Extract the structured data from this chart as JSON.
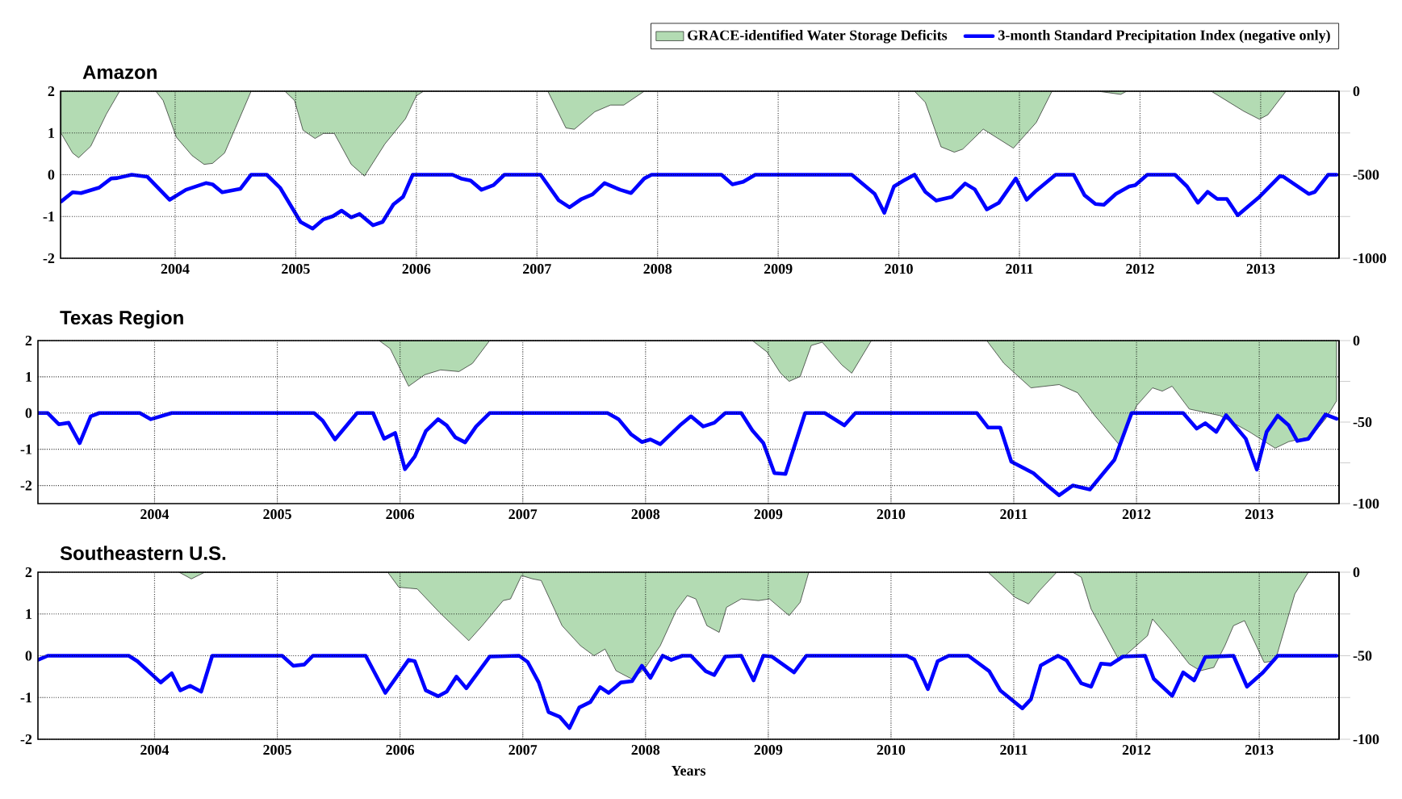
{
  "chart_data": [
    {
      "type": "line",
      "title": "Amazon",
      "legend": "top right",
      "grid": true,
      "xlim": [
        2003.05,
        2013.65
      ],
      "xticks": [
        2004,
        2005,
        2006,
        2007,
        2008,
        2009,
        2010,
        2011,
        2012,
        2013
      ],
      "ylim": [
        -2,
        2
      ],
      "yticks": [
        -2,
        -1,
        0,
        1,
        2
      ],
      "y2lim": [
        -1000,
        0
      ],
      "y2ticks": [
        -1000,
        {
          "value": -750,
          "label": null
        },
        -500,
        {
          "value": -250,
          "label": null
        },
        0
      ],
      "series": [
        {
          "name": "GRACE-identified Water Storage Deficits",
          "type": "area",
          "axis": "y2",
          "color": "#b3dbb3",
          "x": [
            2003.055,
            2003.15,
            2003.2,
            2003.3,
            2003.43,
            2003.54,
            2003.84,
            2003.9,
            2004.01,
            2004.14,
            2004.24,
            2004.31,
            2004.41,
            2004.5,
            2004.63,
            2004.91,
            2004.99,
            2005.06,
            2005.16,
            2005.23,
            2005.32,
            2005.46,
            2005.57,
            2005.74,
            2005.91,
            2006.0,
            2006.06,
            2007.09,
            2007.24,
            2007.31,
            2007.48,
            2007.61,
            2007.72,
            2007.89,
            2010.13,
            2010.22,
            2010.35,
            2010.46,
            2010.53,
            2010.7,
            2010.95,
            2011.14,
            2011.27,
            2011.65,
            2011.84,
            2011.89,
            2012.59,
            2012.86,
            2012.99,
            2013.06,
            2013.21,
            2013.63
          ],
          "values": [
            -252,
            -370,
            -398,
            -330,
            -137,
            0,
            0,
            -55,
            -275,
            -385,
            -438,
            -432,
            -370,
            -220,
            0,
            0,
            -55,
            -233,
            -283,
            -253,
            -253,
            -438,
            -508,
            -315,
            -165,
            -28,
            0,
            0,
            -220,
            -228,
            -123,
            -83,
            -83,
            0,
            0,
            -67,
            -333,
            -365,
            -347,
            -227,
            -341,
            -187,
            0,
            0,
            -19,
            0,
            0,
            -120,
            -168,
            -141,
            0,
            0
          ]
        },
        {
          "name": "3-month Standard Precipitation Index (negative only)",
          "axis": "y",
          "color": "#0000ff",
          "x": [
            2003.055,
            2003.15,
            2003.22,
            2003.37,
            2003.47,
            2003.52,
            2003.64,
            2003.77,
            2003.955,
            2004.09,
            2004.255,
            2004.31,
            2004.39,
            2004.54,
            2004.63,
            2004.76,
            2004.87,
            2005.04,
            2005.14,
            2005.23,
            2005.31,
            2005.38,
            2005.46,
            2005.53,
            2005.64,
            2005.72,
            2005.81,
            2005.89,
            2005.97,
            2006.3,
            2006.37,
            2006.45,
            2006.54,
            2006.64,
            2006.73,
            2007.03,
            2007.18,
            2007.27,
            2007.37,
            2007.46,
            2007.56,
            2007.69,
            2007.78,
            2007.89,
            2007.95,
            2008.53,
            2008.62,
            2008.71,
            2008.81,
            2009.61,
            2009.8,
            2009.88,
            2009.96,
            2010.04,
            2010.13,
            2010.22,
            2010.31,
            2010.44,
            2010.55,
            2010.63,
            2010.73,
            2010.83,
            2010.97,
            2011.06,
            2011.14,
            2011.3,
            2011.45,
            2011.54,
            2011.63,
            2011.7,
            2011.8,
            2011.91,
            2011.96,
            2012.06,
            2012.29,
            2012.39,
            2012.48,
            2012.56,
            2012.64,
            2012.72,
            2012.81,
            2012.99,
            2013.16,
            2013.19,
            2013.4,
            2013.45,
            2013.56,
            2013.63
          ],
          "values": [
            -0.64,
            -0.42,
            -0.44,
            -0.31,
            -0.09,
            -0.08,
            0,
            -0.05,
            -0.6,
            -0.36,
            -0.2,
            -0.23,
            -0.42,
            -0.34,
            0,
            0,
            -0.31,
            -1.13,
            -1.29,
            -1.07,
            -0.99,
            -0.86,
            -1.02,
            -0.94,
            -1.21,
            -1.13,
            -0.71,
            -0.53,
            0,
            0,
            -0.09,
            -0.14,
            -0.36,
            -0.25,
            0,
            0,
            -0.61,
            -0.78,
            -0.58,
            -0.47,
            -0.2,
            -0.36,
            -0.44,
            -0.09,
            0,
            0,
            -0.23,
            -0.17,
            0,
            0,
            -0.46,
            -0.91,
            -0.28,
            -0.14,
            0,
            -0.41,
            -0.62,
            -0.53,
            -0.21,
            -0.35,
            -0.83,
            -0.67,
            -0.09,
            -0.6,
            -0.38,
            0,
            0,
            -0.49,
            -0.7,
            -0.72,
            -0.46,
            -0.28,
            -0.25,
            0,
            0,
            -0.28,
            -0.67,
            -0.41,
            -0.58,
            -0.58,
            -0.97,
            -0.53,
            -0.03,
            -0.05,
            -0.46,
            -0.41,
            0,
            0
          ]
        }
      ]
    },
    {
      "type": "line",
      "title": "Texas Region",
      "grid": true,
      "xlim": [
        2003.05,
        2013.65
      ],
      "xticks": [
        2004,
        2005,
        2006,
        2007,
        2008,
        2009,
        2010,
        2011,
        2012,
        2013
      ],
      "ylim": [
        -2.5,
        2
      ],
      "yticks": [
        -2,
        -1,
        0,
        1,
        2
      ],
      "y2lim": [
        -100,
        0
      ],
      "y2ticks": [
        -100,
        {
          "value": -75,
          "label": null
        },
        -50,
        {
          "value": -25,
          "label": null
        },
        0
      ],
      "series": [
        {
          "type": "area",
          "axis": "y2",
          "color": "#b3dbb3",
          "x": [
            2005.83,
            2005.92,
            2006.07,
            2006.2,
            2006.33,
            2006.48,
            2006.59,
            2006.73,
            2008.87,
            2008.99,
            2009.1,
            2009.17,
            2009.26,
            2009.35,
            2009.44,
            2009.6,
            2009.68,
            2009.84,
            2010.78,
            2010.92,
            2011.14,
            2011.37,
            2011.52,
            2011.66,
            2011.86,
            2012.0,
            2012.13,
            2012.21,
            2012.29,
            2012.43,
            2012.68,
            2012.92,
            2013.13,
            2013.24,
            2013.42,
            2013.54,
            2013.63
          ],
          "values": [
            0,
            -5,
            -28,
            -21,
            -18,
            -19,
            -14,
            0,
            0,
            -7,
            -20,
            -25,
            -22,
            -3,
            -1,
            -15,
            -20,
            0,
            0,
            -14,
            -29,
            -27,
            -32,
            -46,
            -64,
            -40,
            -29,
            -31,
            -28,
            -42,
            -46,
            -56,
            -66,
            -62,
            -59,
            -48,
            -37
          ]
        },
        {
          "axis": "y",
          "color": "#0000ff",
          "x": [
            2003.05,
            2003.13,
            2003.22,
            2003.3,
            2003.39,
            2003.48,
            2003.55,
            2003.88,
            2003.97,
            2004.14,
            2005.3,
            2005.37,
            2005.47,
            2005.65,
            2005.78,
            2005.87,
            2005.96,
            2006.04,
            2006.12,
            2006.21,
            2006.31,
            2006.38,
            2006.45,
            2006.53,
            2006.62,
            2006.73,
            2007.69,
            2007.78,
            2007.88,
            2007.97,
            2008.04,
            2008.12,
            2008.28,
            2008.37,
            2008.47,
            2008.56,
            2008.65,
            2008.78,
            2008.87,
            2008.96,
            2009.05,
            2009.14,
            2009.3,
            2009.46,
            2009.62,
            2009.71,
            2010.7,
            2010.79,
            2010.89,
            2010.98,
            2011.16,
            2011.27,
            2011.37,
            2011.48,
            2011.62,
            2011.73,
            2011.82,
            2011.96,
            2012.38,
            2012.49,
            2012.56,
            2012.65,
            2012.73,
            2012.89,
            2012.98,
            2013.06,
            2013.15,
            2013.24,
            2013.31,
            2013.4,
            2013.54,
            2013.63
          ],
          "values": [
            0,
            0,
            -0.31,
            -0.27,
            -0.83,
            -0.09,
            0,
            0,
            -0.17,
            0,
            0,
            -0.21,
            -0.73,
            0,
            0,
            -0.71,
            -0.55,
            -1.55,
            -1.2,
            -0.5,
            -0.17,
            -0.34,
            -0.67,
            -0.81,
            -0.37,
            0,
            0,
            -0.17,
            -0.58,
            -0.8,
            -0.73,
            -0.86,
            -0.34,
            -0.09,
            -0.37,
            -0.27,
            0,
            0,
            -0.48,
            -0.83,
            -1.66,
            -1.68,
            0,
            0,
            -0.34,
            0,
            0,
            -0.4,
            -0.4,
            -1.34,
            -1.66,
            -1.99,
            -2.27,
            -2,
            -2.11,
            -1.66,
            -1.29,
            0,
            0,
            -0.43,
            -0.28,
            -0.52,
            -0.06,
            -0.71,
            -1.56,
            -0.52,
            -0.07,
            -0.34,
            -0.77,
            -0.71,
            -0.04,
            -0.16
          ]
        }
      ]
    },
    {
      "type": "line",
      "title": "Southeastern U.S.",
      "xlabel": "Years",
      "grid": true,
      "xlim": [
        2003.05,
        2013.65
      ],
      "xticks": [
        2004,
        2005,
        2006,
        2007,
        2008,
        2009,
        2010,
        2011,
        2012,
        2013
      ],
      "ylim": [
        -2,
        2
      ],
      "yticks": [
        -2,
        -1,
        0,
        1,
        2
      ],
      "y2lim": [
        -100,
        0
      ],
      "y2ticks": [
        -100,
        {
          "value": -75,
          "label": null
        },
        -50,
        {
          "value": -25,
          "label": null
        },
        0
      ],
      "series": [
        {
          "type": "area",
          "axis": "y2",
          "color": "#b3dbb3",
          "x": [
            2004.2,
            2004.3,
            2004.41,
            2005.9,
            2005.99,
            2006.14,
            2006.32,
            2006.56,
            2006.67,
            2006.84,
            2006.9,
            2006.99,
            2007.08,
            2007.15,
            2007.32,
            2007.47,
            2007.58,
            2007.67,
            2007.76,
            2007.89,
            2007.99,
            2008.12,
            2008.25,
            2008.34,
            2008.41,
            2008.5,
            2008.6,
            2008.66,
            2008.78,
            2008.92,
            2009.01,
            2009.17,
            2009.26,
            2009.33,
            2010.79,
            2011.01,
            2011.12,
            2011.21,
            2011.35,
            2011.48,
            2011.55,
            2011.63,
            2011.86,
            2012.09,
            2012.13,
            2012.27,
            2012.43,
            2012.52,
            2012.63,
            2012.72,
            2012.79,
            2012.88,
            2013.04,
            2013.13,
            2013.29,
            2013.4,
            2013.63
          ],
          "values": [
            0,
            -4,
            0,
            0,
            -9,
            -10,
            -24,
            -41,
            -32,
            -17,
            -16,
            -2,
            -4,
            -5,
            -32,
            -44,
            -50,
            -46,
            -59,
            -64,
            -58,
            -44,
            -23,
            -14,
            -16,
            -32,
            -36,
            -21,
            -16,
            -17,
            -16,
            -26,
            -18,
            0,
            0,
            -15,
            -19,
            -11,
            0,
            0,
            -3,
            -22,
            -53,
            -38,
            -28,
            -40,
            -55,
            -59,
            -57,
            -44,
            -32,
            -29,
            -54,
            -53,
            -13,
            0,
            0
          ]
        },
        {
          "axis": "y",
          "color": "#0000ff",
          "x": [
            2003.05,
            2003.13,
            2003.79,
            2003.86,
            2004.05,
            2004.14,
            2004.21,
            2004.29,
            2004.38,
            2004.47,
            2005.04,
            2005.13,
            2005.22,
            2005.29,
            2005.72,
            2005.88,
            2006.07,
            2006.12,
            2006.21,
            2006.31,
            2006.38,
            2006.46,
            2006.54,
            2006.73,
            2006.97,
            2007.04,
            2007.13,
            2007.21,
            2007.3,
            2007.38,
            2007.46,
            2007.55,
            2007.63,
            2007.7,
            2007.8,
            2007.89,
            2007.97,
            2008.04,
            2008.14,
            2008.21,
            2008.3,
            2008.37,
            2008.49,
            2008.56,
            2008.65,
            2008.78,
            2008.88,
            2008.96,
            2009.03,
            2009.21,
            2009.31,
            2010.13,
            2010.19,
            2010.3,
            2010.38,
            2010.47,
            2010.63,
            2010.8,
            2010.89,
            2011.07,
            2011.14,
            2011.22,
            2011.36,
            2011.43,
            2011.55,
            2011.63,
            2011.71,
            2011.79,
            2011.89,
            2012.07,
            2012.14,
            2012.29,
            2012.38,
            2012.47,
            2012.56,
            2012.79,
            2012.9,
            2013.03,
            2013.15,
            2013.63
          ],
          "values": [
            -0.1,
            0,
            0,
            -0.13,
            -0.64,
            -0.42,
            -0.83,
            -0.72,
            -0.86,
            0,
            0,
            -0.24,
            -0.21,
            0,
            0,
            -0.89,
            -0.1,
            -0.13,
            -0.83,
            -0.97,
            -0.86,
            -0.5,
            -0.78,
            -0.02,
            0,
            -0.15,
            -0.64,
            -1.35,
            -1.46,
            -1.73,
            -1.24,
            -1.11,
            -0.75,
            -0.89,
            -0.64,
            -0.61,
            -0.24,
            -0.53,
            0,
            -0.1,
            0,
            0,
            -0.37,
            -0.46,
            -0.02,
            0,
            -0.59,
            0,
            -0.02,
            -0.4,
            0,
            0,
            -0.09,
            -0.8,
            -0.13,
            0,
            0,
            -0.37,
            -0.83,
            -1.26,
            -1.04,
            -0.23,
            0,
            -0.11,
            -0.66,
            -0.74,
            -0.19,
            -0.21,
            -0.02,
            0,
            -0.55,
            -0.96,
            -0.4,
            -0.59,
            -0.03,
            0,
            -0.74,
            -0.4,
            0,
            0
          ]
        }
      ]
    }
  ]
}
